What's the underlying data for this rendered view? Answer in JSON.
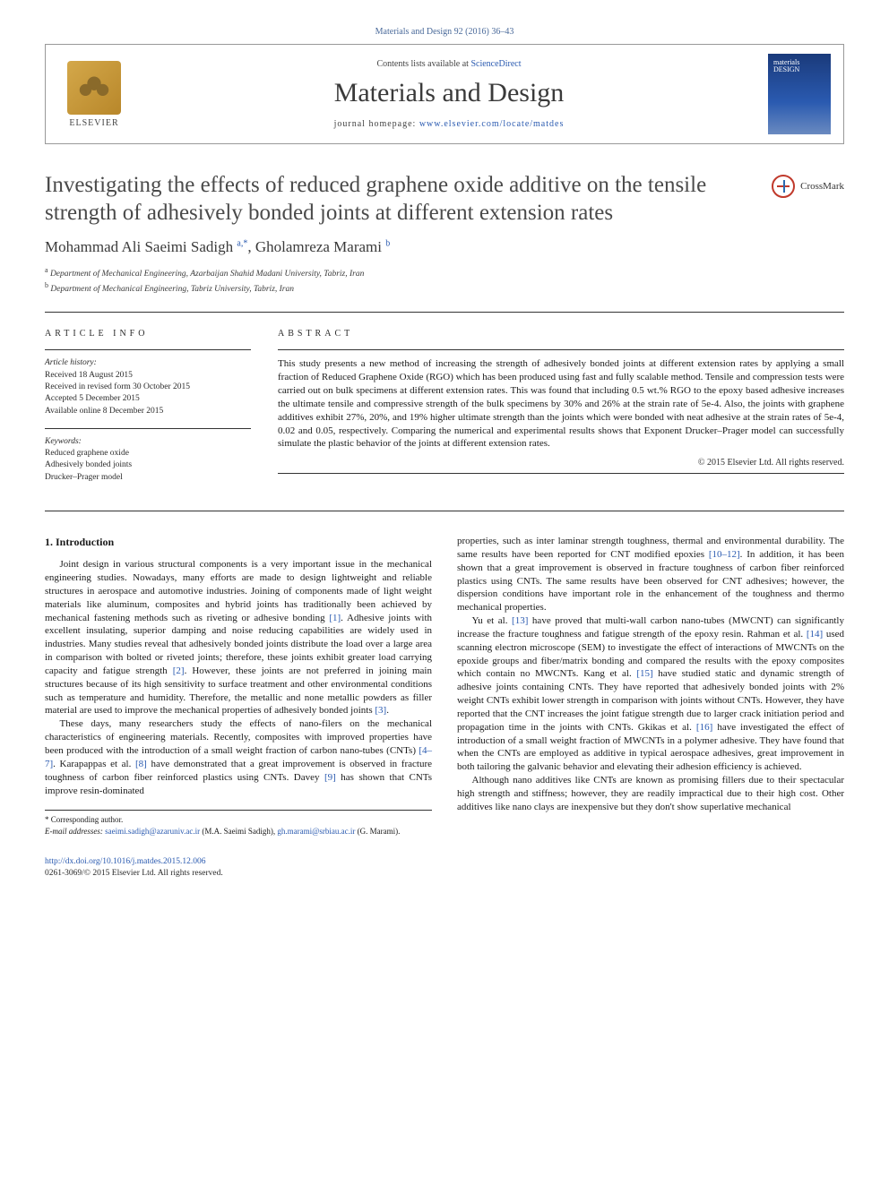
{
  "citation_line": "Materials and Design 92 (2016) 36–43",
  "header": {
    "publisher": "ELSEVIER",
    "contents_prefix": "Contents lists available at ",
    "contents_link": "ScienceDirect",
    "journal_name": "Materials and Design",
    "homepage_prefix": "journal homepage: ",
    "homepage_url": "www.elsevier.com/locate/matdes",
    "cover_label_line1": "materials",
    "cover_label_line2": "DESIGN"
  },
  "crossmark_label": "CrossMark",
  "title": "Investigating the effects of reduced graphene oxide additive on the tensile strength of adhesively bonded joints at different extension rates",
  "authors_html": "Mohammad Ali Saeimi Sadigh <sup>a,*</sup>, Gholamreza Marami <sup>b</sup>",
  "affiliations": [
    {
      "sup": "a",
      "text": "Department of Mechanical Engineering, Azarbaijan Shahid Madani University, Tabriz, Iran"
    },
    {
      "sup": "b",
      "text": "Department of Mechanical Engineering, Tabriz University, Tabriz, Iran"
    }
  ],
  "article_info": {
    "heading": "ARTICLE INFO",
    "history_label": "Article history:",
    "history": [
      "Received 18 August 2015",
      "Received in revised form 30 October 2015",
      "Accepted 5 December 2015",
      "Available online 8 December 2015"
    ],
    "keywords_label": "Keywords:",
    "keywords": [
      "Reduced graphene oxide",
      "Adhesively bonded joints",
      "Drucker–Prager model"
    ]
  },
  "abstract": {
    "heading": "ABSTRACT",
    "text": "This study presents a new method of increasing the strength of adhesively bonded joints at different extension rates by applying a small fraction of Reduced Graphene Oxide (RGO) which has been produced using fast and fully scalable method. Tensile and compression tests were carried out on bulk specimens at different extension rates. This was found that including 0.5 wt.% RGO to the epoxy based adhesive increases the ultimate tensile and compressive strength of the bulk specimens by 30% and 26% at the strain rate of 5e-4. Also, the joints with graphene additives exhibit 27%, 20%, and 19% higher ultimate strength than the joints which were bonded with neat adhesive at the strain rates of 5e-4, 0.02 and 0.05, respectively. Comparing the numerical and experimental results shows that Exponent Drucker–Prager model can successfully simulate the plastic behavior of the joints at different extension rates.",
    "copyright": "© 2015 Elsevier Ltd. All rights reserved."
  },
  "body": {
    "section_heading": "1. Introduction",
    "paragraphs": [
      "Joint design in various structural components is a very important issue in the mechanical engineering studies. Nowadays, many efforts are made to design lightweight and reliable structures in aerospace and automotive industries. Joining of components made of light weight materials like aluminum, composites and hybrid joints has traditionally been achieved by mechanical fastening methods such as riveting or adhesive bonding <span class=\"cite\">[1]</span>. Adhesive joints with excellent insulating, superior damping and noise reducing capabilities are widely used in industries. Many studies reveal that adhesively bonded joints distribute the load over a large area in comparison with bolted or riveted joints; therefore, these joints exhibit greater load carrying capacity and fatigue strength <span class=\"cite\">[2]</span>. However, these joints are not preferred in joining main structures because of its high sensitivity to surface treatment and other environmental conditions such as temperature and humidity. Therefore, the metallic and none metallic powders as filler material are used to improve the mechanical properties of adhesively bonded joints <span class=\"cite\">[3]</span>.",
      "These days, many researchers study the effects of nano-filers on the mechanical characteristics of engineering materials. Recently, composites with improved properties have been produced with the introduction of a small weight fraction of carbon nano-tubes (CNTs) <span class=\"cite\">[4–7]</span>. Karapappas et al. <span class=\"cite\">[8]</span> have demonstrated that a great improvement is observed in fracture toughness of carbon fiber reinforced plastics using CNTs. Davey <span class=\"cite\">[9]</span> has shown that CNTs improve resin-dominated",
      "properties, such as inter laminar strength toughness, thermal and environmental durability. The same results have been reported for CNT modified epoxies <span class=\"cite\">[10–12]</span>. In addition, it has been shown that a great improvement is observed in fracture toughness of carbon fiber reinforced plastics using CNTs. The same results have been observed for CNT adhesives; however, the dispersion conditions have important role in the enhancement of the toughness and thermo mechanical properties.",
      "Yu et al. <span class=\"cite\">[13]</span> have proved that multi-wall carbon nano-tubes (MWCNT) can significantly increase the fracture toughness and fatigue strength of the epoxy resin. Rahman et al. <span class=\"cite\">[14]</span> used scanning electron microscope (SEM) to investigate the effect of interactions of MWCNTs on the epoxide groups and fiber/matrix bonding and compared the results with the epoxy composites which contain no MWCNTs. Kang et al. <span class=\"cite\">[15]</span> have studied static and dynamic strength of adhesive joints containing CNTs. They have reported that adhesively bonded joints with 2% weight CNTs exhibit lower strength in comparison with joints without CNTs. However, they have reported that the CNT increases the joint fatigue strength due to larger crack initiation period and propagation time in the joints with CNTs. Gkikas et al. <span class=\"cite\">[16]</span> have investigated the effect of introduction of a small weight fraction of MWCNTs in a polymer adhesive. They have found that when the CNTs are employed as additive in typical aerospace adhesives, great improvement in both tailoring the galvanic behavior and elevating their adhesion efficiency is achieved.",
      "Although nano additives like CNTs are known as promising fillers due to their spectacular high strength and stiffness; however, they are readily impractical due to their high cost. Other additives like nano clays are inexpensive but they don't show superlative mechanical"
    ]
  },
  "footnote": {
    "corr_label": "* Corresponding author.",
    "emails_label": "E-mail addresses: ",
    "email1": "saeimi.sadigh@azaruniv.ac.ir",
    "name1": " (M.A. Saeimi Sadigh), ",
    "email2": "gh.marami@srbiau.ac.ir",
    "name2": " (G. Marami)."
  },
  "footer": {
    "doi": "http://dx.doi.org/10.1016/j.matdes.2015.12.006",
    "issn_line": "0261-3069/© 2015 Elsevier Ltd. All rights reserved."
  },
  "colors": {
    "link": "#2a5ab0",
    "text": "#1a1a1a",
    "rule": "#333333"
  }
}
